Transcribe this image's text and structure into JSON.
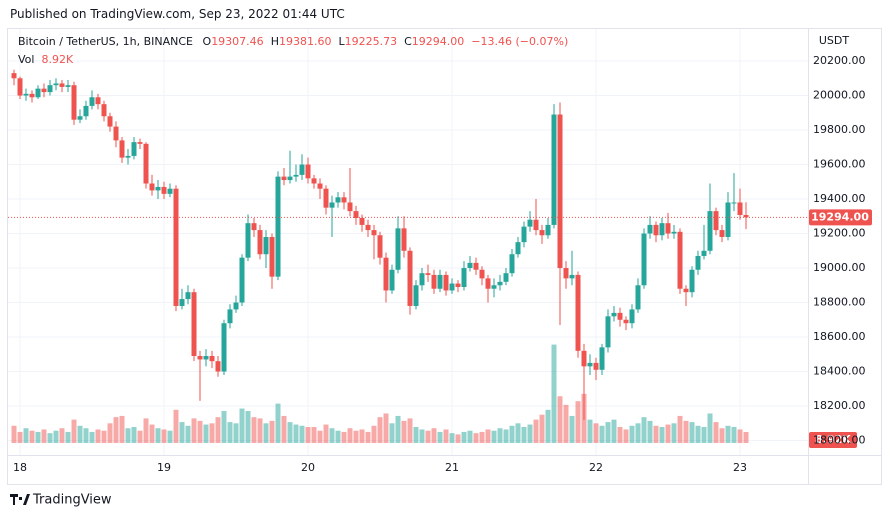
{
  "published": "Published on TradingView.com, Sep 23, 2022 01:44 UTC",
  "brand": "TradingView",
  "chart_data": {
    "type": "candlestick",
    "symbol": "Bitcoin / TetherUS, 1h, BINANCE",
    "legend": [
      {
        "label": "O",
        "value": "19307.46"
      },
      {
        "label": "H",
        "value": "19381.60"
      },
      {
        "label": "L",
        "value": "19225.73"
      },
      {
        "label": "C",
        "value": "19294.00"
      }
    ],
    "change": "−13.46 (−0.07%)",
    "volume_name": "Vol",
    "volume_label": "8.92K",
    "currency": "USDT",
    "last_price_label": "19294.00",
    "up_color": "#26a69a",
    "down_color": "#ef5350",
    "grid": true,
    "categories": [
      null,
      "18",
      null,
      null,
      null,
      null,
      null,
      null,
      null,
      null,
      null,
      null,
      null,
      null,
      null,
      null,
      null,
      null,
      null,
      null,
      null,
      null,
      null,
      null,
      null,
      "19",
      null,
      null,
      null,
      null,
      null,
      null,
      null,
      null,
      null,
      null,
      null,
      null,
      null,
      null,
      null,
      null,
      null,
      null,
      null,
      null,
      null,
      null,
      null,
      "20",
      null,
      null,
      null,
      null,
      null,
      null,
      null,
      null,
      null,
      null,
      null,
      null,
      null,
      null,
      null,
      null,
      null,
      null,
      null,
      null,
      null,
      null,
      null,
      "21",
      null,
      null,
      null,
      null,
      null,
      null,
      null,
      null,
      null,
      null,
      null,
      null,
      null,
      null,
      null,
      null,
      null,
      null,
      null,
      null,
      null,
      null,
      null,
      "22",
      null,
      null,
      null,
      null,
      null,
      null,
      null,
      null,
      null,
      null,
      null,
      null,
      null,
      null,
      null,
      null,
      null,
      null,
      null,
      null,
      null,
      null,
      null,
      "23",
      null
    ],
    "open": [
      20130,
      20100,
      20000,
      20010,
      19990,
      20040,
      20020,
      20060,
      20070,
      20050,
      20060,
      19860,
      19880,
      19940,
      19990,
      19950,
      19880,
      19820,
      19740,
      19640,
      19650,
      19730,
      19720,
      19490,
      19450,
      19470,
      19430,
      19460,
      18780,
      18820,
      18860,
      18490,
      18470,
      18490,
      18460,
      18400,
      18680,
      18760,
      18800,
      19060,
      19260,
      19220,
      19080,
      19180,
      18950,
      19530,
      19510,
      19530,
      19540,
      19600,
      19520,
      19490,
      19460,
      19350,
      19380,
      19410,
      19380,
      19330,
      19290,
      19250,
      19220,
      19190,
      19060,
      18870,
      18990,
      19230,
      19100,
      18780,
      18900,
      18970,
      18960,
      18880,
      18960,
      18870,
      18910,
      18890,
      19000,
      19030,
      18990,
      18940,
      18880,
      18900,
      18920,
      18970,
      19080,
      19150,
      19240,
      19280,
      19220,
      19190,
      19250,
      19890,
      19000,
      18940,
      18960,
      18520,
      18430,
      18450,
      18410,
      18540,
      18720,
      18740,
      18700,
      18680,
      18760,
      18900,
      19200,
      19250,
      19190,
      19260,
      19200,
      19210,
      18880,
      18860,
      18990,
      19070,
      19100,
      19330,
      19220,
      19180,
      19380,
      19380,
      19307.46
    ],
    "high": [
      20150,
      20110,
      20040,
      20030,
      20060,
      20070,
      20090,
      20100,
      20090,
      20090,
      20080,
      19920,
      19970,
      20030,
      20010,
      19970,
      19900,
      19850,
      19760,
      19690,
      19760,
      19750,
      19730,
      19540,
      19510,
      19500,
      19490,
      19480,
      18880,
      18900,
      18880,
      18520,
      18530,
      18520,
      18490,
      18700,
      18790,
      18840,
      19080,
      19310,
      19290,
      19250,
      19220,
      19200,
      19560,
      19580,
      19680,
      19600,
      19660,
      19640,
      19540,
      19520,
      19480,
      19420,
      19440,
      19440,
      19580,
      19360,
      19310,
      19280,
      19250,
      19210,
      19090,
      19020,
      19300,
      19300,
      19120,
      18930,
      19000,
      19020,
      18990,
      18990,
      18980,
      18940,
      18930,
      19040,
      19070,
      19060,
      19010,
      18960,
      18940,
      18960,
      19000,
      19110,
      19180,
      19270,
      19330,
      19400,
      19250,
      19290,
      19950,
      19960,
      19040,
      19100,
      18980,
      18560,
      18500,
      18480,
      18560,
      18760,
      18780,
      18770,
      18720,
      18790,
      18940,
      19230,
      19300,
      19270,
      19290,
      19320,
      19250,
      19230,
      18900,
      19010,
      19100,
      19250,
      19490,
      19350,
      19250,
      19440,
      19550,
      19460,
      19381.6
    ],
    "low": [
      20060,
      19980,
      19970,
      19960,
      19980,
      19990,
      20000,
      20030,
      20020,
      20020,
      19830,
      19840,
      19860,
      19920,
      19920,
      19850,
      19790,
      19700,
      19610,
      19600,
      19630,
      19690,
      19460,
      19420,
      19400,
      19400,
      19410,
      18750,
      18760,
      18790,
      18460,
      18230,
      18430,
      18420,
      18370,
      18380,
      18650,
      18740,
      18780,
      19040,
      19180,
      19050,
      19000,
      18880,
      18930,
      19480,
      19490,
      19500,
      19510,
      19490,
      19460,
      19400,
      19310,
      19180,
      19350,
      19340,
      19300,
      19250,
      19210,
      19180,
      19050,
      19020,
      18800,
      18850,
      18970,
      19060,
      18730,
      18760,
      18870,
      18920,
      18850,
      18860,
      18840,
      18850,
      18860,
      18870,
      18980,
      18960,
      18900,
      18800,
      18830,
      18870,
      18900,
      18950,
      19060,
      19120,
      19210,
      19190,
      19140,
      19170,
      19230,
      18670,
      18880,
      18900,
      18480,
      18120,
      18380,
      18350,
      18380,
      18510,
      18690,
      18660,
      18640,
      18650,
      18740,
      18880,
      19170,
      19150,
      19160,
      19170,
      19170,
      18850,
      18780,
      18830,
      18960,
      19050,
      19080,
      19190,
      19150,
      19160,
      19330,
      19280,
      19225.73
    ],
    "close": [
      20100,
      20000,
      20010,
      19990,
      20040,
      20020,
      20060,
      20070,
      20050,
      20060,
      19860,
      19880,
      19940,
      19990,
      19950,
      19880,
      19820,
      19740,
      19640,
      19650,
      19730,
      19720,
      19490,
      19450,
      19470,
      19430,
      19460,
      18780,
      18820,
      18860,
      18490,
      18470,
      18490,
      18460,
      18400,
      18680,
      18760,
      18800,
      19060,
      19260,
      19220,
      19080,
      19180,
      18950,
      19530,
      19510,
      19530,
      19540,
      19600,
      19520,
      19490,
      19460,
      19350,
      19380,
      19410,
      19380,
      19330,
      19290,
      19250,
      19220,
      19190,
      19060,
      18870,
      18990,
      19230,
      19100,
      18780,
      18900,
      18970,
      18960,
      18880,
      18960,
      18870,
      18910,
      18890,
      19000,
      19030,
      18990,
      18940,
      18880,
      18900,
      18920,
      18970,
      19080,
      19150,
      19240,
      19280,
      19220,
      19190,
      19250,
      19890,
      19000,
      18940,
      18960,
      18520,
      18430,
      18450,
      18410,
      18540,
      18720,
      18740,
      18700,
      18680,
      18760,
      18900,
      19200,
      19250,
      19190,
      19260,
      19200,
      19210,
      18880,
      18860,
      18990,
      19070,
      19100,
      19330,
      19220,
      19180,
      19380,
      19380,
      19307.46,
      19294
    ],
    "volume": [
      14000,
      9000,
      12000,
      10000,
      9000,
      11000,
      8000,
      10000,
      12000,
      9000,
      19000,
      14000,
      12000,
      9000,
      11000,
      10000,
      16000,
      21000,
      22000,
      12000,
      13000,
      10000,
      20000,
      15000,
      12000,
      11000,
      10000,
      27000,
      17000,
      14000,
      20000,
      18000,
      15000,
      16000,
      21000,
      26000,
      17000,
      16000,
      28000,
      26000,
      21000,
      20000,
      16000,
      18000,
      32000,
      22000,
      17000,
      15000,
      14000,
      13000,
      13000,
      10000,
      15000,
      12000,
      10000,
      9000,
      12000,
      10000,
      11000,
      9000,
      14000,
      21000,
      24000,
      16000,
      22000,
      18000,
      20000,
      13000,
      11000,
      10000,
      12000,
      9000,
      11000,
      8000,
      7000,
      9000,
      10000,
      8000,
      9000,
      11000,
      10000,
      12000,
      11000,
      14000,
      16000,
      13000,
      15000,
      19000,
      23000,
      27000,
      80000,
      38000,
      31000,
      22000,
      34000,
      40000,
      19000,
      16000,
      14000,
      17000,
      19000,
      13000,
      11000,
      14000,
      16000,
      21000,
      18000,
      14000,
      13000,
      15000,
      16000,
      22000,
      18000,
      17000,
      14000,
      13000,
      24000,
      17000,
      12000,
      14000,
      13000,
      11000,
      8920
    ],
    "volume_ylim": [
      0,
      100000
    ],
    "ylim": [
      17916,
      20380
    ],
    "yticks": [
      {
        "value": 18000,
        "label": "18000.00"
      },
      {
        "value": 18200,
        "label": "18200.00"
      },
      {
        "value": 18400,
        "label": "18400.00"
      },
      {
        "value": 18600,
        "label": "18600.00"
      },
      {
        "value": 18800,
        "label": "18800.00"
      },
      {
        "value": 19000,
        "label": "19000.00"
      },
      {
        "value": 19200,
        "label": "19200.00"
      },
      {
        "value": 19400,
        "label": "19400.00"
      },
      {
        "value": 19600,
        "label": "19600.00"
      },
      {
        "value": 19800,
        "label": "19800.00"
      },
      {
        "value": 20000,
        "label": "20000.00"
      },
      {
        "value": 20200,
        "label": "20200.00"
      }
    ]
  }
}
